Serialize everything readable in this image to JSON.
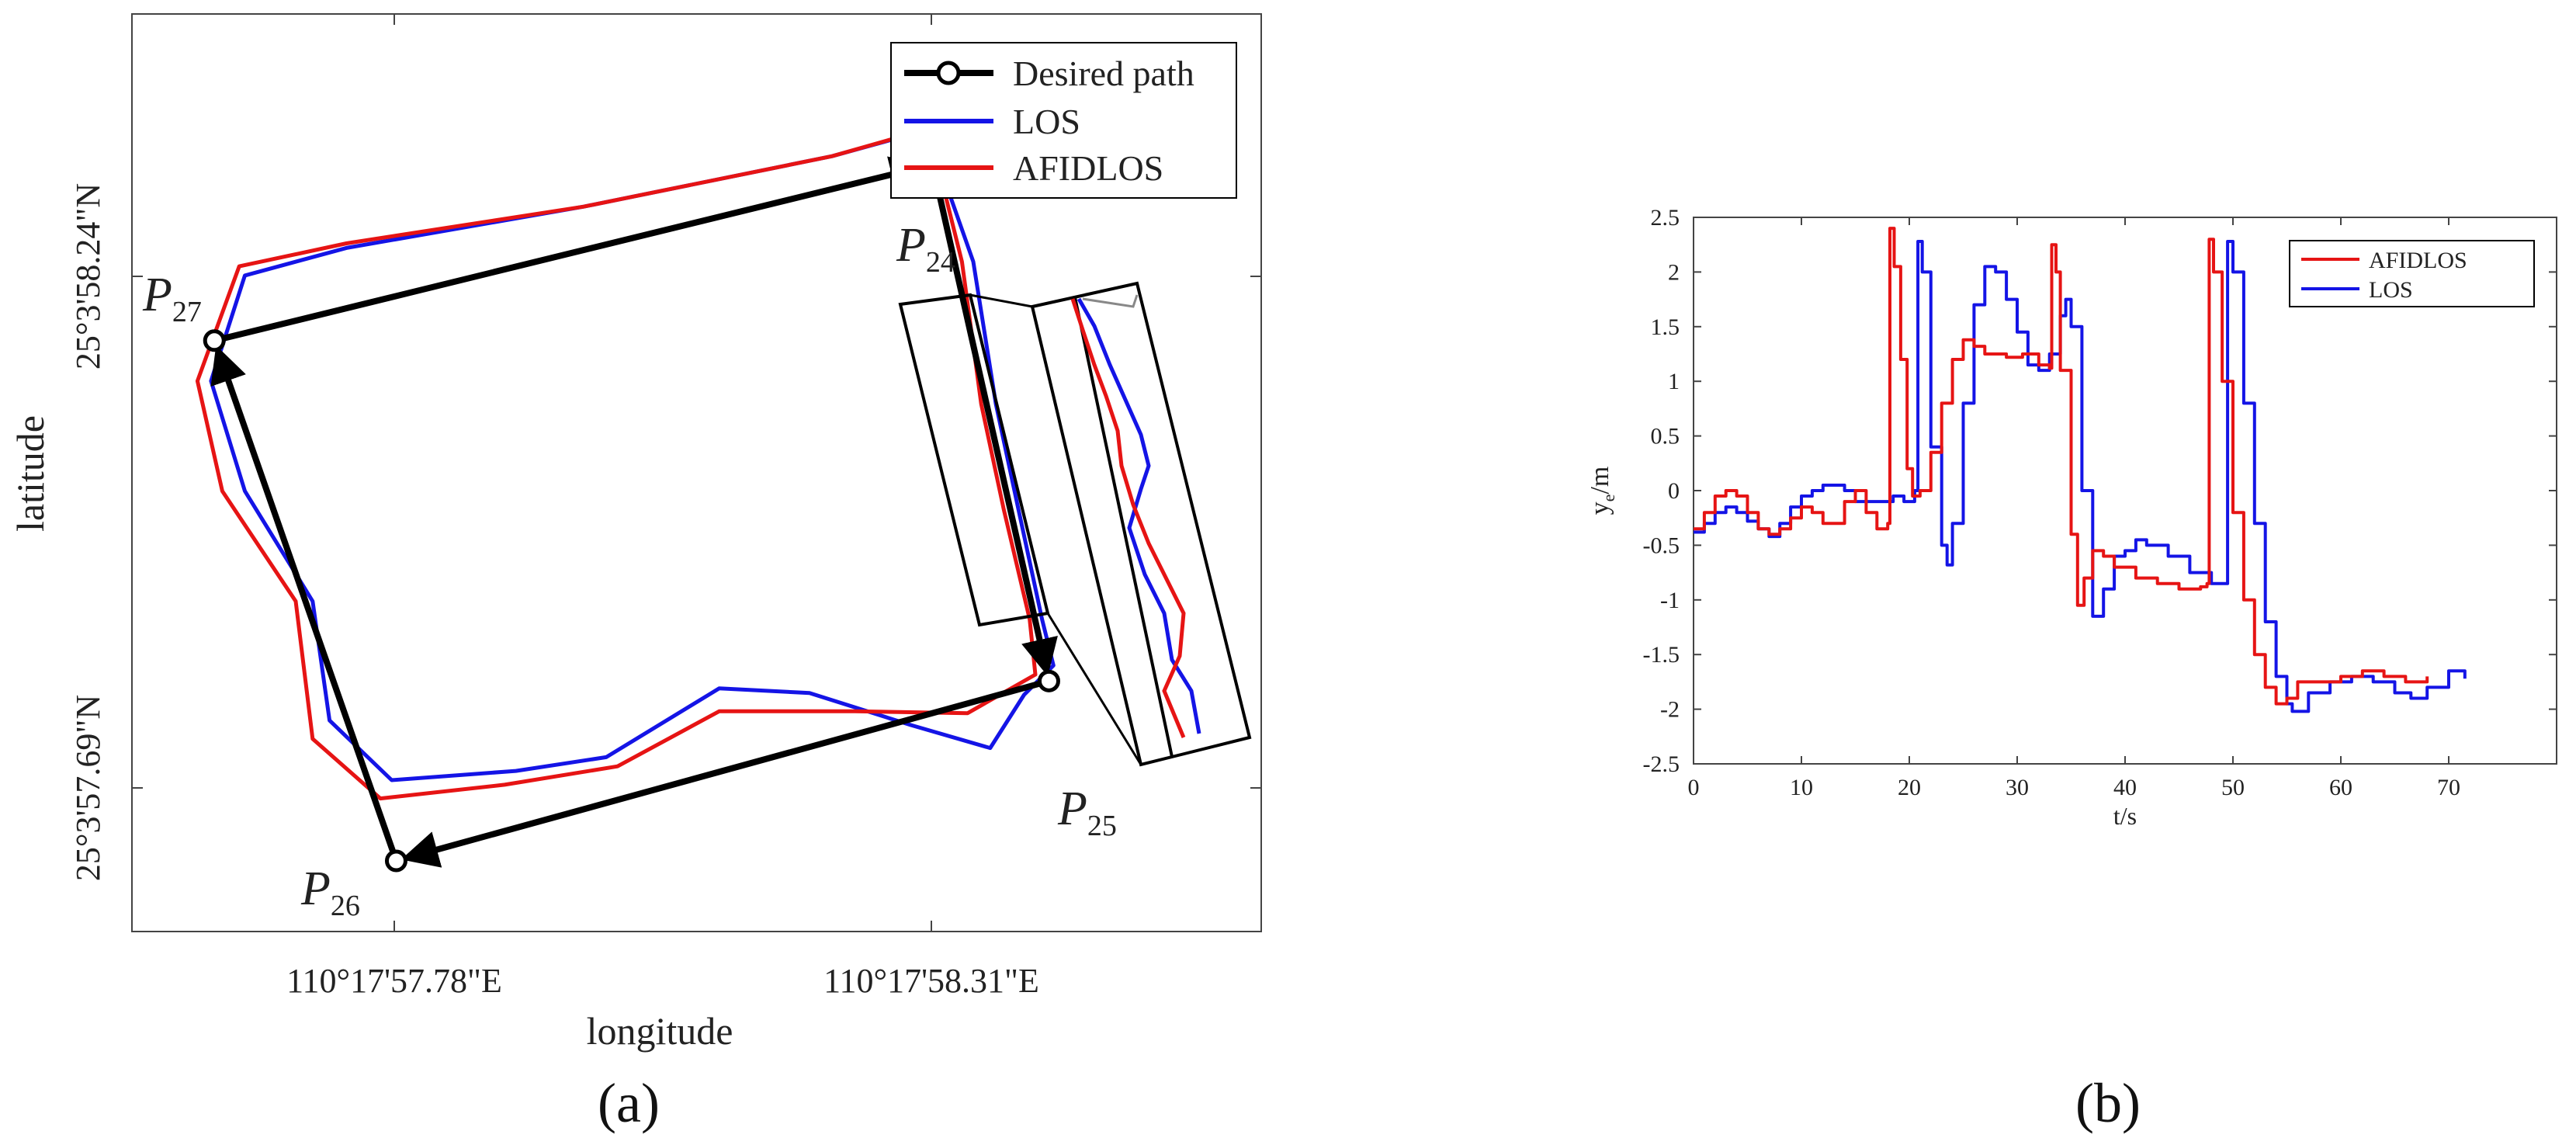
{
  "chart_data": [
    {
      "panel": "(a)",
      "type": "line",
      "title": "",
      "xlabel": "longitude",
      "ylabel": "latitude",
      "x_ticks": [
        "110°17'57.78\"E",
        "110°17'58.31\"E"
      ],
      "y_ticks": [
        "25°3'58.24\"N",
        "25°3'57.69\"N"
      ],
      "waypoints": [
        {
          "label": "P",
          "sub": "24"
        },
        {
          "label": "P",
          "sub": "25"
        },
        {
          "label": "P",
          "sub": "26"
        },
        {
          "label": "P",
          "sub": "27"
        }
      ],
      "legend": {
        "position": "top-right"
      },
      "series": [
        {
          "name": "Desired path",
          "color": "#000000",
          "marker": "circle",
          "points": [
            [
              0.709,
              0.164
            ],
            [
              0.812,
              0.727
            ],
            [
              0.234,
              0.923
            ],
            [
              0.073,
              0.356
            ],
            [
              0.709,
              0.164
            ]
          ]
        },
        {
          "name": "LOS",
          "color": "#1414e6",
          "points": [
            [
              0.729,
              0.118
            ],
            [
              0.721,
              0.186
            ],
            [
              0.745,
              0.27
            ],
            [
              0.765,
              0.425
            ],
            [
              0.785,
              0.54
            ],
            [
              0.806,
              0.66
            ],
            [
              0.816,
              0.71
            ],
            [
              0.79,
              0.742
            ],
            [
              0.76,
              0.8
            ],
            [
              0.69,
              0.775
            ],
            [
              0.6,
              0.74
            ],
            [
              0.52,
              0.735
            ],
            [
              0.42,
              0.81
            ],
            [
              0.34,
              0.825
            ],
            [
              0.23,
              0.835
            ],
            [
              0.175,
              0.77
            ],
            [
              0.16,
              0.64
            ],
            [
              0.1,
              0.52
            ],
            [
              0.07,
              0.4
            ],
            [
              0.1,
              0.285
            ],
            [
              0.19,
              0.255
            ],
            [
              0.4,
              0.21
            ],
            [
              0.62,
              0.155
            ],
            [
              0.729,
              0.118
            ]
          ]
        },
        {
          "name": "AFIDLOS",
          "color": "#e61414",
          "points": [
            [
              0.72,
              0.12
            ],
            [
              0.718,
              0.186
            ],
            [
              0.735,
              0.27
            ],
            [
              0.752,
              0.425
            ],
            [
              0.772,
              0.54
            ],
            [
              0.795,
              0.66
            ],
            [
              0.8,
              0.72
            ],
            [
              0.74,
              0.762
            ],
            [
              0.64,
              0.76
            ],
            [
              0.52,
              0.76
            ],
            [
              0.43,
              0.82
            ],
            [
              0.33,
              0.84
            ],
            [
              0.22,
              0.855
            ],
            [
              0.16,
              0.79
            ],
            [
              0.145,
              0.64
            ],
            [
              0.08,
              0.52
            ],
            [
              0.058,
              0.4
            ],
            [
              0.095,
              0.275
            ],
            [
              0.19,
              0.25
            ],
            [
              0.4,
              0.21
            ],
            [
              0.62,
              0.155
            ],
            [
              0.72,
              0.12
            ]
          ]
        }
      ]
    },
    {
      "panel": "(b)",
      "type": "line",
      "title": "",
      "xlabel": "t/s",
      "ylabel": "y_e/m",
      "xlim": [
        0,
        80
      ],
      "ylim": [
        -2.5,
        2.5
      ],
      "x_ticks": [
        0,
        10,
        20,
        30,
        40,
        50,
        60,
        70
      ],
      "y_ticks": [
        2.5,
        2,
        1.5,
        1,
        0.5,
        0,
        -0.5,
        -1,
        -1.5,
        -2,
        -2.5
      ],
      "legend": {
        "position": "top-right"
      },
      "series": [
        {
          "name": "AFIDLOS",
          "color": "#e61414",
          "points": [
            [
              0,
              -0.35
            ],
            [
              1,
              -0.2
            ],
            [
              2,
              -0.05
            ],
            [
              3,
              0
            ],
            [
              4,
              -0.05
            ],
            [
              5,
              -0.2
            ],
            [
              6,
              -0.35
            ],
            [
              7,
              -0.4
            ],
            [
              8,
              -0.35
            ],
            [
              9,
              -0.25
            ],
            [
              10,
              -0.15
            ],
            [
              11,
              -0.2
            ],
            [
              12,
              -0.3
            ],
            [
              13,
              -0.3
            ],
            [
              14,
              -0.1
            ],
            [
              15,
              0
            ],
            [
              16,
              -0.2
            ],
            [
              17,
              -0.35
            ],
            [
              18,
              -0.3
            ],
            [
              18.2,
              2.4
            ],
            [
              18.6,
              2.05
            ],
            [
              19.2,
              1.2
            ],
            [
              19.8,
              0.2
            ],
            [
              20.3,
              -0.05
            ],
            [
              21,
              0
            ],
            [
              22,
              0.35
            ],
            [
              23,
              0.8
            ],
            [
              24,
              1.2
            ],
            [
              25,
              1.38
            ],
            [
              26,
              1.32
            ],
            [
              27,
              1.25
            ],
            [
              29,
              1.22
            ],
            [
              30.5,
              1.25
            ],
            [
              32,
              1.15
            ],
            [
              33,
              1.12
            ],
            [
              33.2,
              2.25
            ],
            [
              33.6,
              2.0
            ],
            [
              34,
              1.1
            ],
            [
              35,
              -0.4
            ],
            [
              35.6,
              -1.05
            ],
            [
              36.2,
              -0.8
            ],
            [
              37,
              -0.55
            ],
            [
              38,
              -0.6
            ],
            [
              39,
              -0.7
            ],
            [
              41,
              -0.8
            ],
            [
              43,
              -0.85
            ],
            [
              45,
              -0.9
            ],
            [
              47,
              -0.88
            ],
            [
              47.6,
              -0.85
            ],
            [
              47.8,
              2.3
            ],
            [
              48.2,
              2.0
            ],
            [
              49,
              1.0
            ],
            [
              50,
              -0.2
            ],
            [
              51,
              -1.0
            ],
            [
              52,
              -1.5
            ],
            [
              53,
              -1.8
            ],
            [
              54,
              -1.95
            ],
            [
              55,
              -1.9
            ],
            [
              56,
              -1.75
            ],
            [
              58,
              -1.75
            ],
            [
              60,
              -1.7
            ],
            [
              62,
              -1.65
            ],
            [
              64,
              -1.7
            ],
            [
              66,
              -1.75
            ],
            [
              68,
              -1.7
            ]
          ]
        },
        {
          "name": "LOS",
          "color": "#1414e6",
          "points": [
            [
              0,
              -0.38
            ],
            [
              1,
              -0.3
            ],
            [
              2,
              -0.2
            ],
            [
              3,
              -0.15
            ],
            [
              4,
              -0.2
            ],
            [
              5,
              -0.28
            ],
            [
              6,
              -0.35
            ],
            [
              7,
              -0.42
            ],
            [
              8,
              -0.3
            ],
            [
              9,
              -0.15
            ],
            [
              10,
              -0.05
            ],
            [
              11,
              0
            ],
            [
              12,
              0.05
            ],
            [
              13,
              0.05
            ],
            [
              14,
              0
            ],
            [
              15,
              -0.1
            ],
            [
              16,
              -0.1
            ],
            [
              17,
              -0.1
            ],
            [
              18.5,
              -0.05
            ],
            [
              19.5,
              -0.1
            ],
            [
              20.5,
              0
            ],
            [
              20.8,
              2.28
            ],
            [
              21.2,
              2.0
            ],
            [
              22,
              0.4
            ],
            [
              23,
              -0.5
            ],
            [
              23.5,
              -0.68
            ],
            [
              24,
              -0.3
            ],
            [
              25,
              0.8
            ],
            [
              26,
              1.7
            ],
            [
              27,
              2.05
            ],
            [
              28,
              2.0
            ],
            [
              29,
              1.75
            ],
            [
              30,
              1.45
            ],
            [
              31,
              1.15
            ],
            [
              32,
              1.1
            ],
            [
              33,
              1.25
            ],
            [
              34,
              1.6
            ],
            [
              34.5,
              1.75
            ],
            [
              35,
              1.5
            ],
            [
              36,
              0
            ],
            [
              37,
              -1.15
            ],
            [
              38,
              -0.9
            ],
            [
              39,
              -0.6
            ],
            [
              40,
              -0.55
            ],
            [
              41,
              -0.45
            ],
            [
              42,
              -0.5
            ],
            [
              44,
              -0.6
            ],
            [
              46,
              -0.75
            ],
            [
              48,
              -0.85
            ],
            [
              49.2,
              -0.85
            ],
            [
              49.5,
              2.28
            ],
            [
              50,
              2.0
            ],
            [
              51,
              0.8
            ],
            [
              52,
              -0.3
            ],
            [
              53,
              -1.2
            ],
            [
              54,
              -1.7
            ],
            [
              55,
              -1.95
            ],
            [
              55.5,
              -2.02
            ],
            [
              57,
              -1.85
            ],
            [
              59,
              -1.75
            ],
            [
              61,
              -1.7
            ],
            [
              63,
              -1.75
            ],
            [
              65,
              -1.85
            ],
            [
              66.5,
              -1.9
            ],
            [
              68,
              -1.8
            ],
            [
              70,
              -1.65
            ],
            [
              71.5,
              -1.72
            ]
          ]
        }
      ]
    }
  ],
  "captions": {
    "a": "(a)",
    "b": "(b)"
  }
}
